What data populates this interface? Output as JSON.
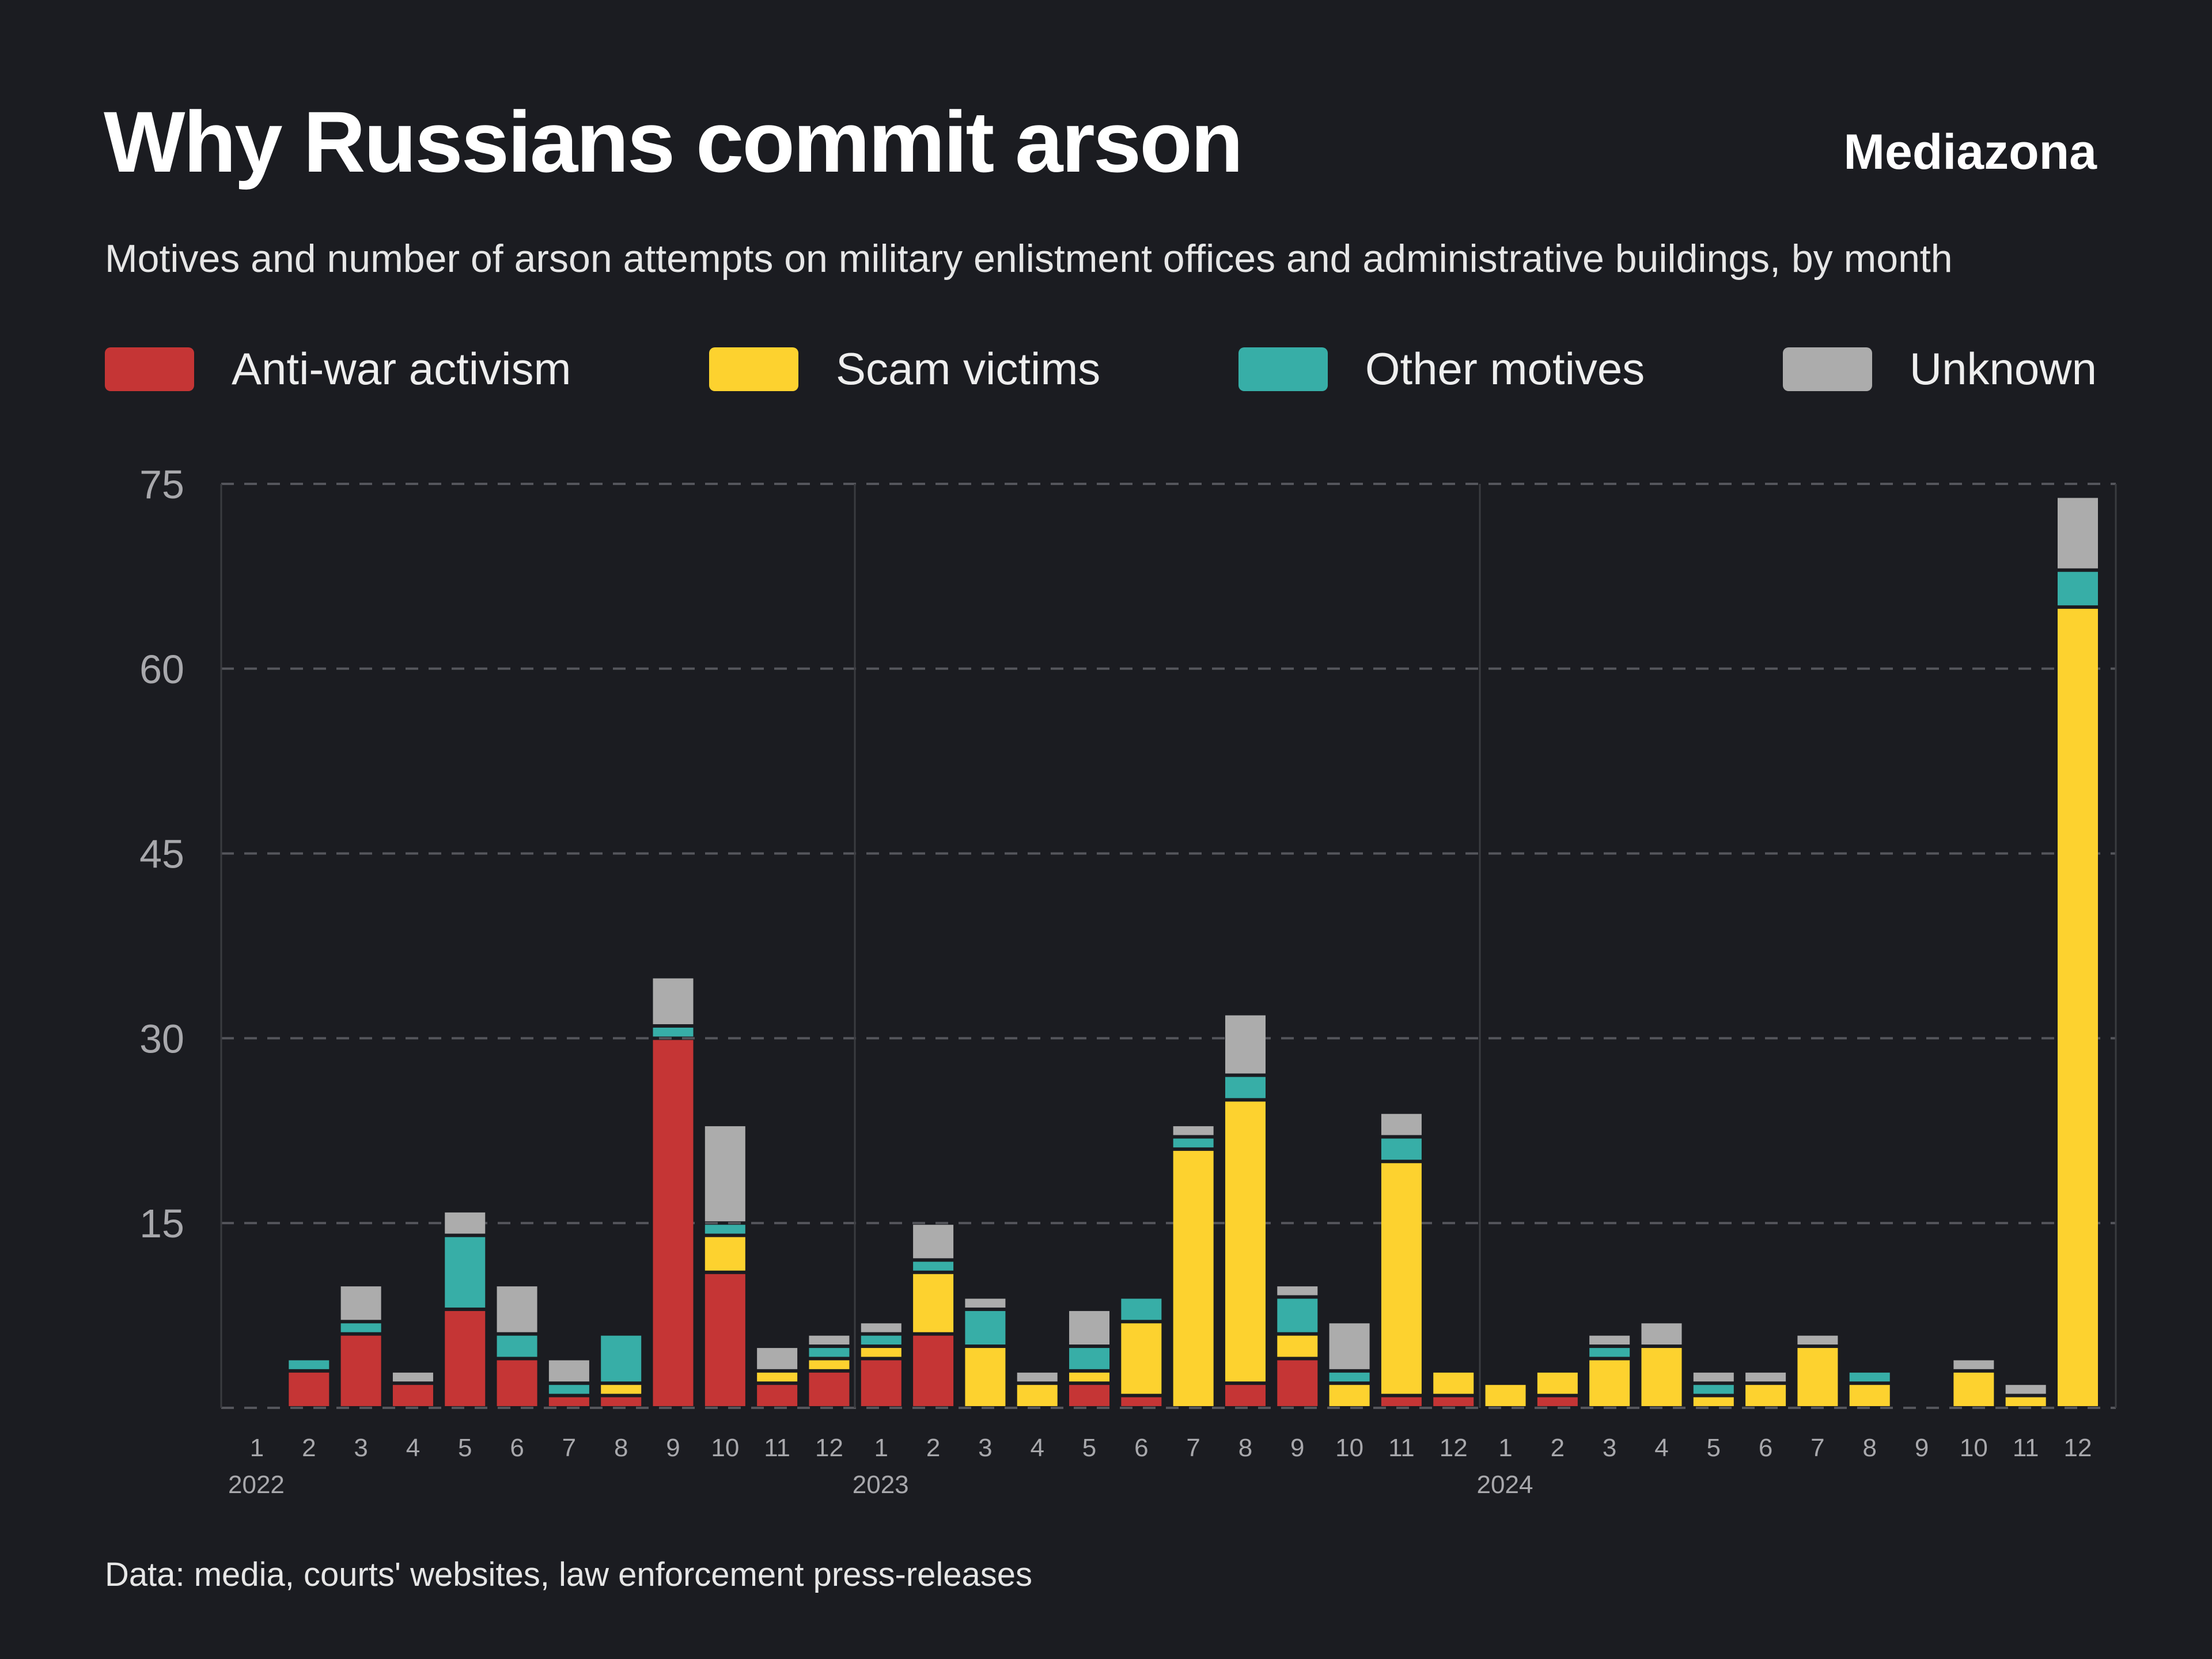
{
  "header": {
    "title": "Why Russians commit arson",
    "brand": "Mediazona",
    "subtitle": "Motives and number of arson attempts on military enlistment offices and administrative buildings, by month"
  },
  "footer": {
    "source": "Data: media, courts' websites, law enforcement press-releases"
  },
  "chart_data": {
    "type": "bar",
    "stacked": true,
    "title": "Why Russians commit arson",
    "xlabel": "",
    "ylabel": "",
    "ylim": [
      0,
      75
    ],
    "yticks": [
      15,
      30,
      45,
      60,
      75
    ],
    "grid": true,
    "legend_position": "top",
    "years": [
      "2022",
      "2023",
      "2024"
    ],
    "categories": [
      "1",
      "2",
      "3",
      "4",
      "5",
      "6",
      "7",
      "8",
      "9",
      "10",
      "11",
      "12",
      "1",
      "2",
      "3",
      "4",
      "5",
      "6",
      "7",
      "8",
      "9",
      "10",
      "11",
      "12",
      "1",
      "2",
      "3",
      "4",
      "5",
      "6",
      "7",
      "8",
      "9",
      "10",
      "11",
      "12"
    ],
    "series": [
      {
        "name": "Anti-war activism",
        "color": "#c53535",
        "values": [
          0,
          3,
          6,
          2,
          8,
          4,
          1,
          1,
          30,
          11,
          2,
          3,
          4,
          6,
          0,
          0,
          2,
          1,
          0,
          2,
          4,
          0,
          1,
          1,
          0,
          1,
          0,
          0,
          0,
          0,
          0,
          0,
          0,
          0,
          0,
          0
        ]
      },
      {
        "name": "Scam victims",
        "color": "#fdd22f",
        "values": [
          0,
          0,
          0,
          0,
          0,
          0,
          0,
          1,
          0,
          3,
          1,
          1,
          1,
          5,
          5,
          2,
          1,
          6,
          21,
          23,
          2,
          2,
          19,
          2,
          2,
          2,
          4,
          5,
          1,
          2,
          5,
          2,
          0,
          3,
          1,
          65
        ]
      },
      {
        "name": "Other motives",
        "color": "#37aea7",
        "values": [
          0,
          1,
          1,
          0,
          6,
          2,
          1,
          4,
          1,
          1,
          0,
          1,
          1,
          1,
          3,
          0,
          2,
          2,
          1,
          2,
          3,
          1,
          2,
          0,
          0,
          0,
          1,
          0,
          1,
          0,
          0,
          1,
          0,
          0,
          0,
          3
        ]
      },
      {
        "name": "Unknown",
        "color": "#acacac",
        "values": [
          0,
          0,
          3,
          1,
          2,
          4,
          2,
          0,
          4,
          8,
          2,
          1,
          1,
          3,
          1,
          1,
          3,
          0,
          1,
          5,
          1,
          4,
          2,
          0,
          0,
          0,
          1,
          2,
          1,
          1,
          1,
          0,
          0,
          1,
          1,
          6
        ]
      }
    ]
  }
}
